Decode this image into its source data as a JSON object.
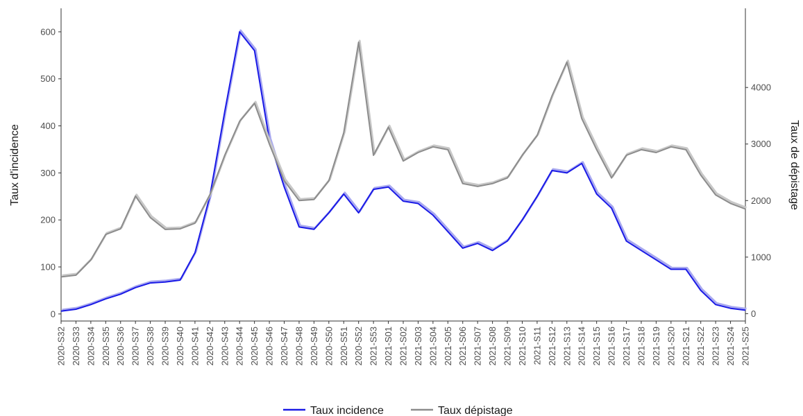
{
  "chart_data": {
    "type": "line",
    "title": "",
    "ylabel_left": "Taux d'incidence",
    "ylabel_right": "Taux de dépistage",
    "ylim_left": [
      -15,
      650
    ],
    "ylim_right": [
      -130,
      5400
    ],
    "yticks_left": [
      0,
      100,
      200,
      300,
      400,
      500,
      600
    ],
    "yticks_right": [
      0,
      1000,
      2000,
      3000,
      4000
    ],
    "categories": [
      "2020-S32",
      "2020-S33",
      "2020-S34",
      "2020-S35",
      "2020-S36",
      "2020-S37",
      "2020-S38",
      "2020-S39",
      "2020-S40",
      "2020-S41",
      "2020-S42",
      "2020-S43",
      "2020-S44",
      "2020-S45",
      "2020-S46",
      "2020-S47",
      "2020-S48",
      "2020-S49",
      "2020-S50",
      "2020-S51",
      "2020-S52",
      "2021-S53",
      "2021-S01",
      "2021-S02",
      "2021-S03",
      "2021-S04",
      "2021-S05",
      "2021-S06",
      "2021-S07",
      "2021-S08",
      "2021-S09",
      "2021-S10",
      "2021-S11",
      "2021-S12",
      "2021-S13",
      "2021-S14",
      "2021-S15",
      "2021-S16",
      "2021-S17",
      "2021-S18",
      "2021-S19",
      "2021-S20",
      "2021-S21",
      "2021-S22",
      "2021-S23",
      "2021-S24",
      "2021-S25"
    ],
    "legend_position": "bottom",
    "grid": false,
    "series": [
      {
        "name": "Taux incidence",
        "axis": "left",
        "color": "#1a1ae6",
        "light_color": "#a8a8f0",
        "values": [
          6,
          10,
          20,
          32,
          42,
          56,
          66,
          68,
          72,
          130,
          250,
          430,
          600,
          560,
          370,
          270,
          185,
          180,
          215,
          255,
          215,
          265,
          270,
          240,
          235,
          210,
          175,
          140,
          150,
          135,
          155,
          200,
          250,
          305,
          300,
          320,
          255,
          225,
          155,
          135,
          115,
          95,
          95,
          50,
          20,
          12,
          8
        ]
      },
      {
        "name": "Taux dépistage",
        "axis": "right",
        "color": "#8c8c8c",
        "light_color": "#c8c8c8",
        "values": [
          650,
          680,
          950,
          1400,
          1500,
          2080,
          1700,
          1490,
          1500,
          1600,
          2100,
          2800,
          3400,
          3720,
          3000,
          2350,
          2000,
          2020,
          2350,
          3200,
          4800,
          2800,
          3300,
          2700,
          2850,
          2950,
          2900,
          2300,
          2250,
          2300,
          2400,
          2800,
          3150,
          3850,
          4450,
          3450,
          2900,
          2400,
          2800,
          2900,
          2850,
          2950,
          2900,
          2450,
          2100,
          1950,
          1850
        ]
      }
    ]
  }
}
